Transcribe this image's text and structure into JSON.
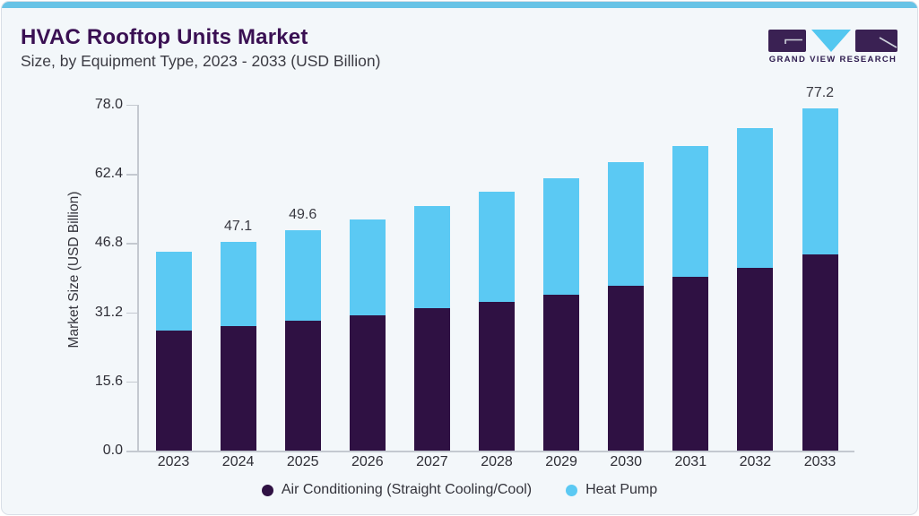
{
  "header": {
    "title": "HVAC Rooftop Units Market",
    "subtitle": "Size, by Equipment Type, 2023 - 2033 (USD Billion)"
  },
  "logo": {
    "brand": "GRAND VIEW RESEARCH"
  },
  "chart_data": {
    "type": "bar",
    "stacked": true,
    "title": "HVAC Rooftop Units Market Size, by Equipment Type, 2023 - 2033 (USD Billion)",
    "ylabel": "Market Size (USD Billion)",
    "xlabel": "",
    "categories": [
      "2023",
      "2024",
      "2025",
      "2026",
      "2027",
      "2028",
      "2029",
      "2030",
      "2031",
      "2032",
      "2033"
    ],
    "series": [
      {
        "name": "Air Conditioning (Straight Cooling/Cool)",
        "color": "#2F1143",
        "values": [
          27.0,
          28.0,
          29.3,
          30.5,
          32.2,
          33.6,
          35.2,
          37.1,
          39.2,
          41.3,
          44.2
        ]
      },
      {
        "name": "Heat Pump",
        "color": "#5BC9F3",
        "values": [
          17.9,
          19.1,
          20.3,
          21.7,
          23.0,
          24.8,
          26.3,
          27.9,
          29.5,
          31.5,
          33.0
        ]
      }
    ],
    "totals": [
      44.9,
      47.1,
      49.6,
      52.2,
      55.2,
      58.4,
      61.5,
      65.0,
      68.7,
      72.8,
      77.2
    ],
    "bar_labels": {
      "2024": "47.1",
      "2025": "49.6",
      "2033": "77.2"
    },
    "yticks": [
      "0.0",
      "15.6",
      "31.2",
      "46.8",
      "62.4",
      "78.0"
    ],
    "ylim": [
      0,
      78
    ],
    "grid": false,
    "legend_position": "bottom"
  },
  "legend": {
    "items": [
      {
        "label": "Air Conditioning (Straight Cooling/Cool)",
        "color": "#2F1143"
      },
      {
        "label": "Heat Pump",
        "color": "#5BC9F3"
      }
    ]
  },
  "colors": {
    "accent_top_bar": "#67C3E6",
    "card_background": "#F3F7FA",
    "card_border": "#D9DFE7",
    "axis_line": "#C4C9D0",
    "title": "#3A1053",
    "logo_purple": "#3A2153",
    "logo_cyan": "#53C7F0",
    "logo_glyph_line": "#CFD3DC"
  }
}
